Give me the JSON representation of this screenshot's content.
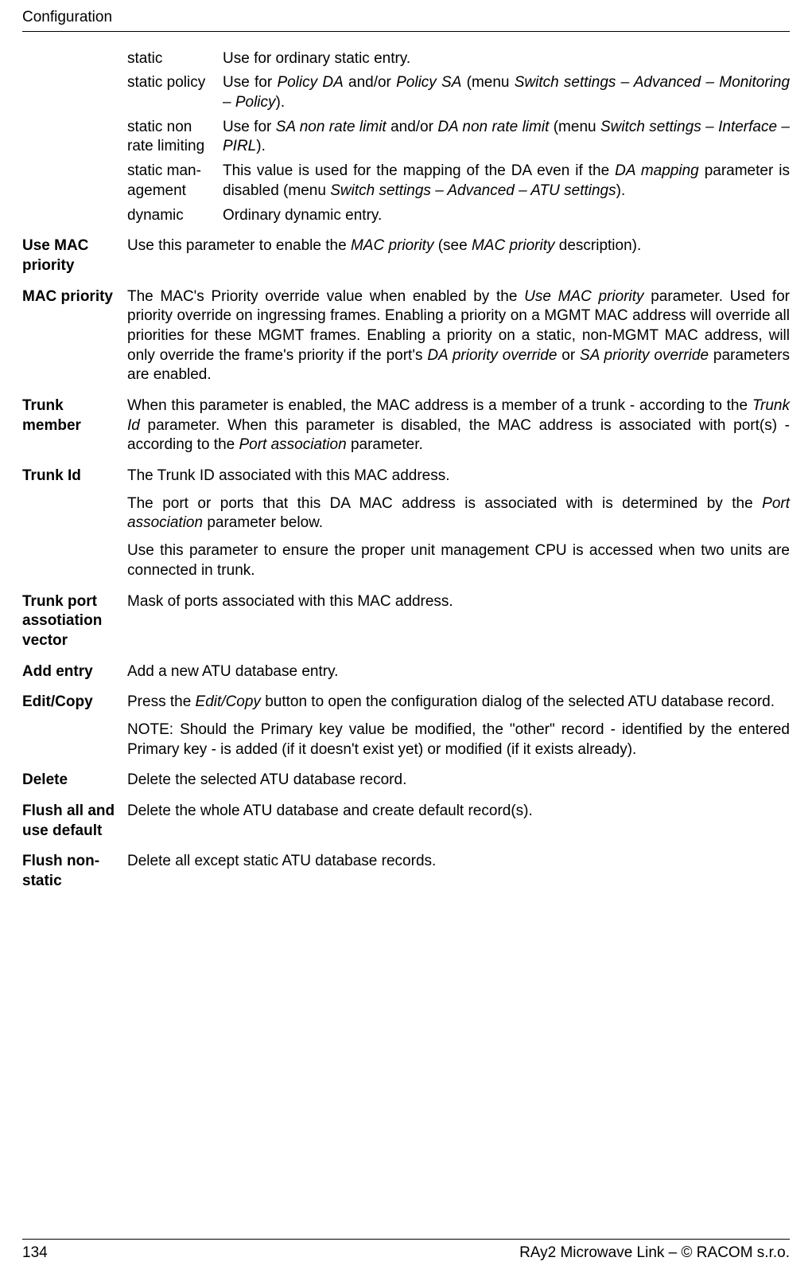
{
  "header": {
    "title": "Configuration"
  },
  "footer": {
    "page": "134",
    "copyright": "RAy2 Microwave Link – © RACOM s.r.o."
  },
  "mini": [
    {
      "term": "static",
      "def_parts": [
        [
          "Use for ordinary static entry."
        ]
      ]
    },
    {
      "term": "static policy",
      "def_parts": [
        [
          "Use for "
        ],
        [
          "i",
          "Policy DA"
        ],
        [
          " and/or "
        ],
        [
          "i",
          "Policy SA"
        ],
        [
          " (menu "
        ],
        [
          "i",
          "Switch settings – Advanced – Monitoring – Policy"
        ],
        [
          ")."
        ]
      ]
    },
    {
      "term": "static non rate limiting",
      "def_parts": [
        [
          "Use for "
        ],
        [
          "i",
          "SA non rate limit"
        ],
        [
          " and/or "
        ],
        [
          "i",
          "DA non rate limit"
        ],
        [
          " (menu "
        ],
        [
          "i",
          "Switch set­tings – Interface – PIRL"
        ],
        [
          ")."
        ]
      ]
    },
    {
      "term": "static man­agement",
      "def_parts": [
        [
          "This value is used for the mapping of the DA even if the "
        ],
        [
          "i",
          "DA mapping"
        ],
        [
          " parameter is disabled (menu "
        ],
        [
          "i",
          "Switch settings – Advanced – ATU settings"
        ],
        [
          ")."
        ]
      ]
    },
    {
      "term": "dynamic",
      "def_parts": [
        [
          "Ordinary dynamic entry."
        ]
      ]
    }
  ],
  "rows": [
    {
      "term": "Use MAC priority",
      "paras": [
        [
          [
            "Use this parameter to enable the "
          ],
          [
            "i",
            "MAC priority"
          ],
          [
            " (see "
          ],
          [
            "i",
            "MAC priority"
          ],
          [
            " description)."
          ]
        ]
      ]
    },
    {
      "term": "MAC priority",
      "paras": [
        [
          [
            "The MAC's Priority override value when enabled by the "
          ],
          [
            "i",
            "Use MAC priority"
          ],
          [
            " parameter. Used for priority override on ingressing frames. Enabling a priority on a MGMT MAC address will override all priorities for these MGMT frames. Enabling a priority on a static, non-MGMT MAC address, will only override the frame's priority if the port's "
          ],
          [
            "i",
            "DA priority override"
          ],
          [
            " or "
          ],
          [
            "i",
            "SA priority override"
          ],
          [
            " parameters are enabled."
          ]
        ]
      ]
    },
    {
      "term": "Trunk member",
      "paras": [
        [
          [
            "When this parameter is enabled, the MAC address is a member of a trunk - according to the "
          ],
          [
            "i",
            "Trunk Id"
          ],
          [
            " parameter. When this parameter is disabled, the MAC address is as­sociated with port(s) - according to the "
          ],
          [
            "i",
            "Port association"
          ],
          [
            " parameter."
          ]
        ]
      ]
    },
    {
      "term": "Trunk Id",
      "paras": [
        [
          [
            "The Trunk ID associated with this MAC address."
          ]
        ],
        [
          [
            "The port or ports that this DA MAC address is associated with is determined by the "
          ],
          [
            "i",
            "Port association"
          ],
          [
            " parameter below."
          ]
        ],
        [
          [
            "Use this parameter to ensure the proper unit management CPU is accessed when two units are connected in trunk."
          ]
        ]
      ]
    },
    {
      "term": "Trunk port assotiation vector",
      "paras": [
        [
          [
            "Mask of ports associated with this MAC address."
          ]
        ]
      ]
    },
    {
      "term": "Add entry",
      "paras": [
        [
          [
            "Add a new ATU database entry."
          ]
        ]
      ]
    },
    {
      "term": "Edit/Copy",
      "paras": [
        [
          [
            "Press the "
          ],
          [
            "i",
            "Edit/Copy"
          ],
          [
            " button to open the configuration dialog of the selected ATU database record."
          ]
        ],
        [
          [
            "NOTE: Should the Primary key value be modified, the \"other\" record - identified by the entered Primary key - is added (if it doesn't exist yet) or modified (if it exists already)."
          ]
        ]
      ]
    },
    {
      "term": "Delete",
      "paras": [
        [
          [
            "Delete the selected ATU database record."
          ]
        ]
      ]
    },
    {
      "term": "Flush all and use default",
      "paras": [
        [
          [
            "Delete the whole ATU database and create default record(s)."
          ]
        ]
      ]
    },
    {
      "term": "Flush non-static",
      "paras": [
        [
          [
            "Delete all except static ATU database records."
          ]
        ]
      ]
    }
  ]
}
